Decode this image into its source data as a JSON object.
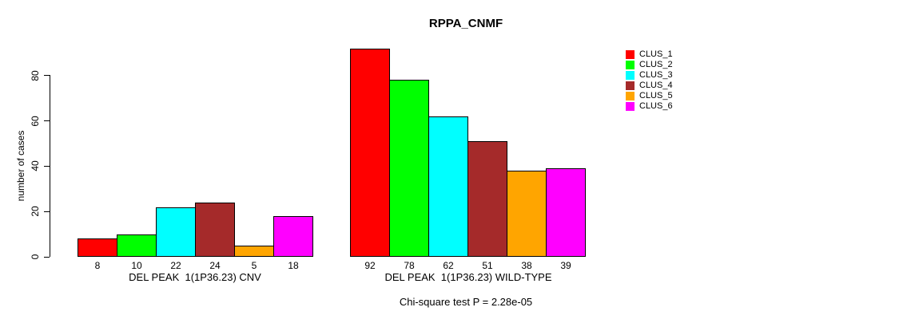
{
  "chart_data": {
    "type": "bar",
    "title": "RPPA_CNMF",
    "ylabel": "number of cases",
    "yticks": [
      0,
      20,
      40,
      60,
      80
    ],
    "ylim": [
      0,
      94
    ],
    "grid": false,
    "legend_position": "right",
    "legend": [
      "CLUS_1",
      "CLUS_2",
      "CLUS_3",
      "CLUS_4",
      "CLUS_5",
      "CLUS_6"
    ],
    "series_colors": [
      "#FF0000",
      "#00FF00",
      "#00FFFF",
      "#A52A2A",
      "#FFA500",
      "#FF00FF"
    ],
    "groups": [
      {
        "label": "DEL PEAK  1(1P36.23) CNV",
        "values": [
          8,
          10,
          22,
          24,
          5,
          18
        ]
      },
      {
        "label": "DEL PEAK  1(1P36.23) WILD-TYPE",
        "values": [
          92,
          78,
          62,
          51,
          38,
          39
        ]
      }
    ],
    "annotation": "Chi-square test P = 2.28e-05"
  }
}
